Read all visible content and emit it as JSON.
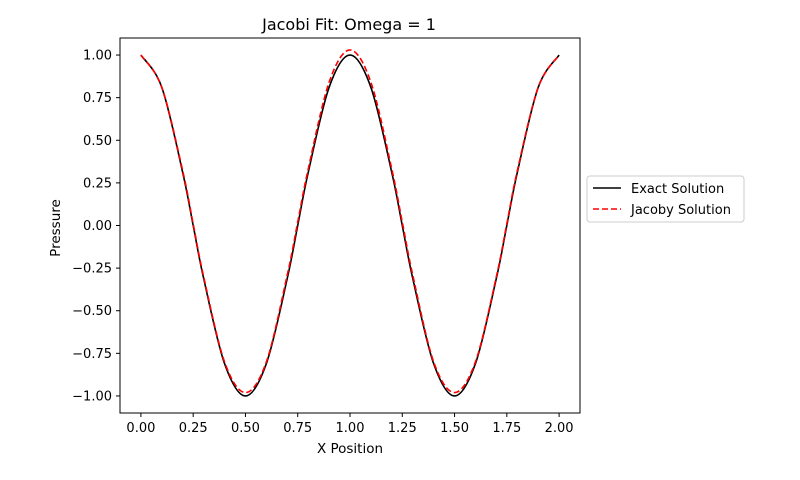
{
  "chart_data": {
    "type": "line",
    "title": "Jacobi Fit: Omega = 1",
    "xlabel": "X Position",
    "ylabel": "Pressure",
    "xlim": [
      -0.1,
      2.1
    ],
    "ylim": [
      -1.1,
      1.1
    ],
    "grid": false,
    "legend_position": "right, outside plot",
    "x_ticks": [
      "0.00",
      "0.25",
      "0.50",
      "0.75",
      "1.00",
      "1.25",
      "1.50",
      "1.75",
      "2.00"
    ],
    "y_ticks": [
      "1.00",
      "0.75",
      "0.50",
      "0.25",
      "0.00",
      "−0.25",
      "−0.50",
      "−0.75",
      "−1.00"
    ],
    "x_tick_values": [
      0,
      0.25,
      0.5,
      0.75,
      1.0,
      1.25,
      1.5,
      1.75,
      2.0
    ],
    "y_tick_values": [
      1.0,
      0.75,
      0.5,
      0.25,
      0.0,
      -0.25,
      -0.5,
      -0.75,
      -1.0
    ],
    "x": [
      0.0,
      0.1,
      0.2,
      0.25,
      0.3,
      0.4,
      0.5,
      0.6,
      0.7,
      0.75,
      0.8,
      0.9,
      1.0,
      1.1,
      1.2,
      1.25,
      1.3,
      1.4,
      1.5,
      1.6,
      1.7,
      1.75,
      1.8,
      1.9,
      2.0
    ],
    "series": [
      {
        "name": "Exact Solution",
        "color": "#000000",
        "style": "solid",
        "values": [
          1.0,
          0.81,
          0.31,
          0.0,
          -0.31,
          -0.81,
          -1.0,
          -0.81,
          -0.31,
          0.0,
          0.31,
          0.81,
          1.0,
          0.81,
          0.31,
          0.0,
          -0.31,
          -0.81,
          -1.0,
          -0.81,
          -0.31,
          0.0,
          0.31,
          0.81,
          1.0
        ]
      },
      {
        "name": "Jacoby Solution",
        "color": "#ff0000",
        "style": "dashed",
        "values": [
          1.0,
          0.81,
          0.32,
          0.01,
          -0.3,
          -0.8,
          -0.98,
          -0.8,
          -0.29,
          0.02,
          0.33,
          0.84,
          1.03,
          0.84,
          0.33,
          0.02,
          -0.29,
          -0.8,
          -0.98,
          -0.8,
          -0.3,
          0.01,
          0.32,
          0.81,
          1.0
        ]
      }
    ]
  }
}
